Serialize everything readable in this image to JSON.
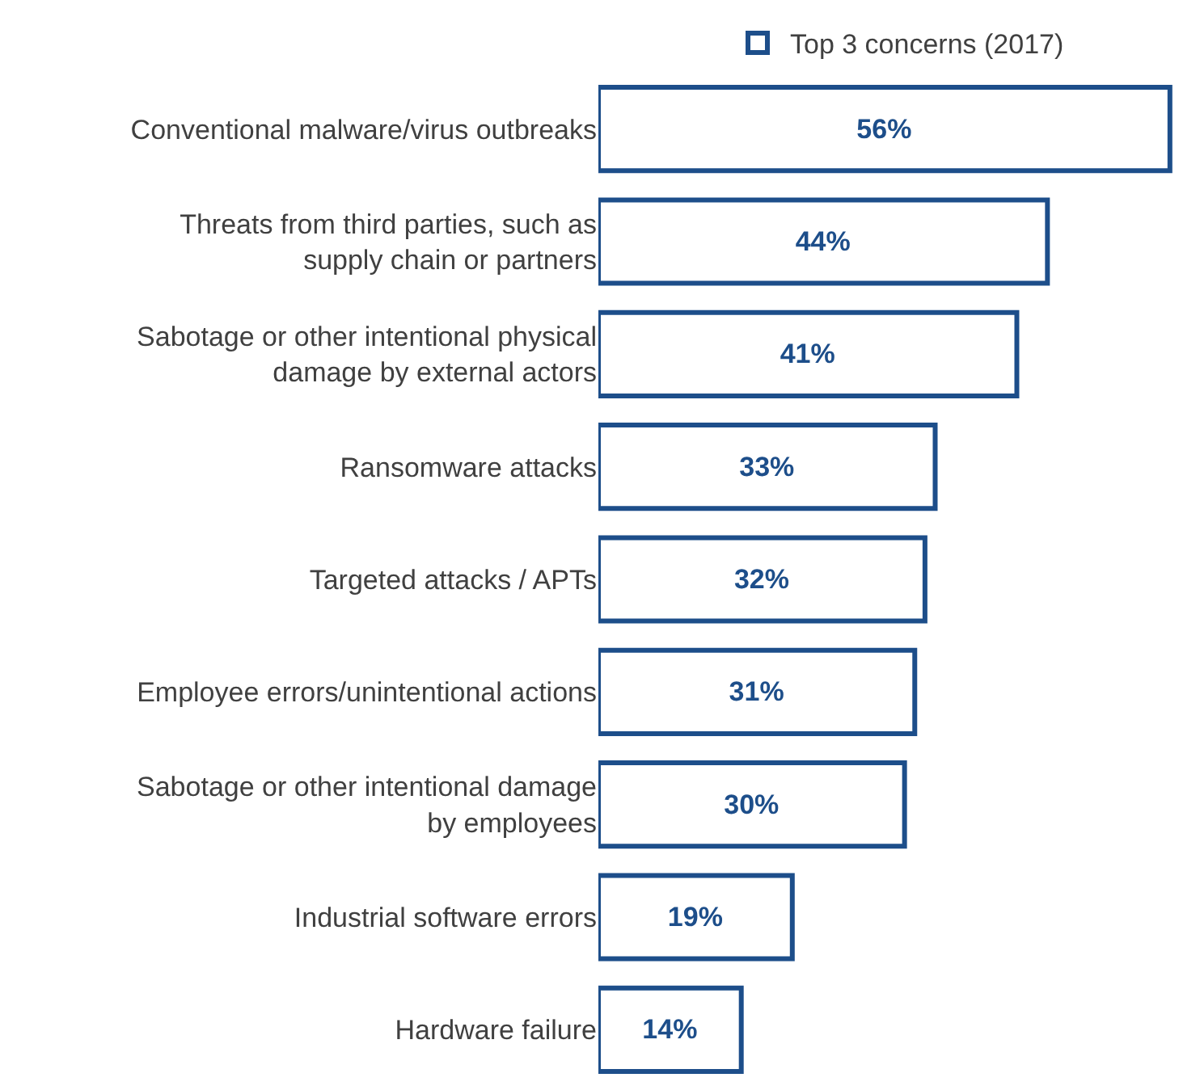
{
  "chart_data": {
    "type": "bar",
    "orientation": "horizontal",
    "categories": [
      "Conventional malware/virus outbreaks",
      "Threats from third parties, such as supply chain or partners",
      "Sabotage or other intentional physical damage by external actors",
      "Ransomware attacks",
      "Targeted attacks / APTs",
      "Employee errors/unintentional actions",
      "Sabotage or other intentional damage by employees",
      "Industrial software errors",
      "Hardware failure"
    ],
    "series": [
      {
        "name": "Top 3 concerns (2017)",
        "color": "#1d4e8a",
        "values": [
          56,
          44,
          41,
          33,
          32,
          31,
          30,
          19,
          14
        ],
        "value_labels": [
          "56%",
          "44%",
          "41%",
          "33%",
          "32%",
          "31%",
          "30%",
          "19%",
          "14%"
        ]
      }
    ],
    "legend": "top",
    "grid": false
  }
}
